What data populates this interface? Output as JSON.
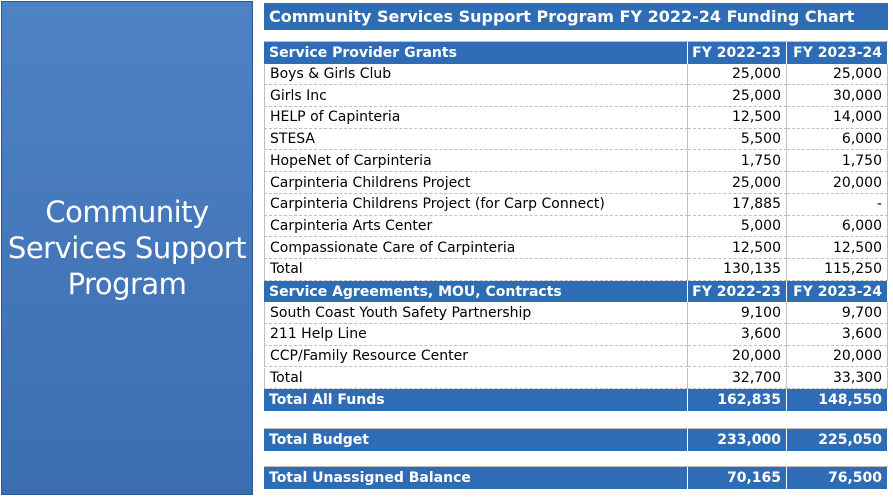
{
  "panel": {
    "lines": [
      "Community",
      "Services Support",
      "Program"
    ]
  },
  "table": {
    "title": "Community Services Support Program FY 2022-24 Funding Chart",
    "sections": [
      {
        "header": [
          "Service Provider Grants",
          "FY 2022-23",
          "FY 2023-24"
        ],
        "rows": [
          [
            "Boys & Girls Club",
            "25,000",
            "25,000"
          ],
          [
            "Girls Inc",
            "25,000",
            "30,000"
          ],
          [
            "HELP of Capinteria",
            "12,500",
            "14,000"
          ],
          [
            "STESA",
            "5,500",
            "6,000"
          ],
          [
            "HopeNet of Carpinteria",
            "1,750",
            "1,750"
          ],
          [
            "Carpinteria Childrens Project",
            "25,000",
            "20,000"
          ],
          [
            "Carpinteria Childrens Project (for Carp Connect)",
            "17,885",
            "-"
          ],
          [
            "Carpinteria Arts Center",
            "5,000",
            "6,000"
          ],
          [
            "Compassionate Care of Carpinteria",
            "12,500",
            "12,500"
          ],
          [
            "Total",
            "130,135",
            "115,250"
          ]
        ]
      },
      {
        "header": [
          "Service Agreements, MOU, Contracts",
          "FY 2022-23",
          "FY 2023-24"
        ],
        "rows": [
          [
            "South Coast Youth Safety Partnership",
            "9,100",
            "9,700"
          ],
          [
            "211 Help Line",
            "3,600",
            "3,600"
          ],
          [
            "CCP/Family Resource Center",
            "20,000",
            "20,000"
          ],
          [
            "Total",
            "32,700",
            "33,300"
          ]
        ]
      }
    ],
    "summary": [
      [
        "Total All Funds",
        "162,835",
        "148,550"
      ],
      [
        "Total Budget",
        "233,000",
        "225,050"
      ],
      [
        "Total Unassigned Balance",
        "70,165",
        "76,500"
      ]
    ]
  }
}
